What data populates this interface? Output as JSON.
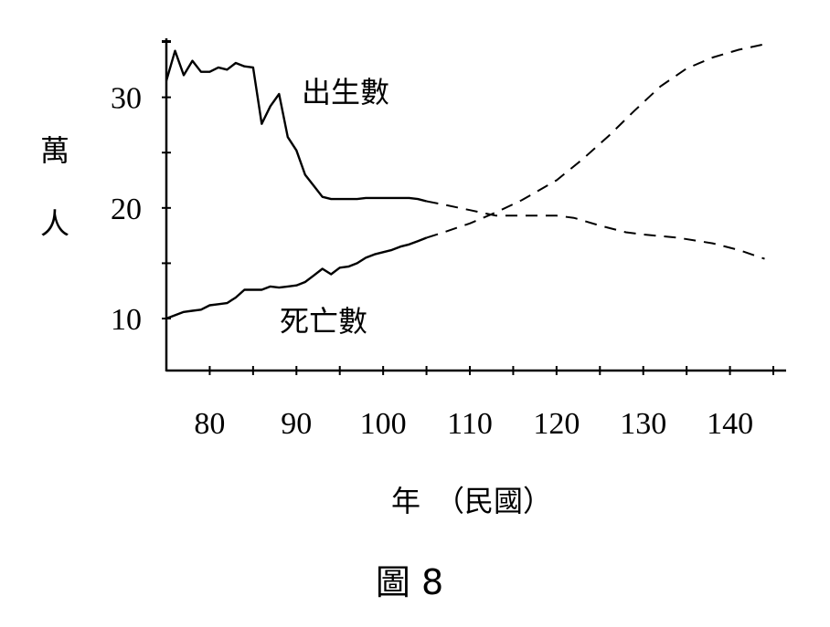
{
  "chart_data": {
    "type": "line",
    "title": "",
    "caption": "圖 8",
    "ylabel": "萬人",
    "xlabel": "年　（民國）",
    "xlim": [
      75,
      145
    ],
    "ylim": [
      5.3,
      35
    ],
    "x_ticks": [
      80,
      90,
      100,
      110,
      120,
      130,
      140
    ],
    "y_ticks": [
      10,
      20,
      30
    ],
    "grid": false,
    "series": [
      {
        "name": "出生數",
        "observed": [
          [
            75,
            31.5
          ],
          [
            76,
            34.2
          ],
          [
            77,
            32.0
          ],
          [
            78,
            33.3
          ],
          [
            79,
            32.3
          ],
          [
            80,
            32.3
          ],
          [
            81,
            32.7
          ],
          [
            82,
            32.5
          ],
          [
            83,
            33.1
          ],
          [
            84,
            32.8
          ],
          [
            85,
            32.7
          ],
          [
            86,
            27.6
          ],
          [
            87,
            29.2
          ],
          [
            88,
            30.3
          ],
          [
            89,
            26.4
          ],
          [
            90,
            25.2
          ],
          [
            91,
            23.0
          ],
          [
            92,
            22.0
          ],
          [
            93,
            21.0
          ],
          [
            94,
            20.8
          ],
          [
            95,
            20.8
          ],
          [
            96,
            20.8
          ],
          [
            97,
            20.8
          ],
          [
            98,
            20.9
          ],
          [
            99,
            20.9
          ],
          [
            100,
            20.9
          ],
          [
            101,
            20.9
          ],
          [
            102,
            20.9
          ],
          [
            103,
            20.9
          ],
          [
            104,
            20.8
          ],
          [
            105,
            20.6
          ]
        ],
        "projected": [
          [
            105,
            20.6
          ],
          [
            107,
            20.3
          ],
          [
            110,
            19.8
          ],
          [
            113,
            19.3
          ],
          [
            116,
            19.3
          ],
          [
            120,
            19.3
          ],
          [
            122,
            19.1
          ],
          [
            125,
            18.4
          ],
          [
            128,
            17.8
          ],
          [
            130,
            17.6
          ],
          [
            134,
            17.3
          ],
          [
            138,
            16.8
          ],
          [
            141,
            16.2
          ],
          [
            144,
            15.4
          ]
        ]
      },
      {
        "name": "死亡數",
        "observed": [
          [
            75,
            10.0
          ],
          [
            76,
            10.3
          ],
          [
            77,
            10.6
          ],
          [
            78,
            10.7
          ],
          [
            79,
            10.8
          ],
          [
            80,
            11.2
          ],
          [
            81,
            11.3
          ],
          [
            82,
            11.4
          ],
          [
            83,
            11.9
          ],
          [
            84,
            12.6
          ],
          [
            85,
            12.6
          ],
          [
            86,
            12.6
          ],
          [
            87,
            12.9
          ],
          [
            88,
            12.8
          ],
          [
            89,
            12.9
          ],
          [
            90,
            13.0
          ],
          [
            91,
            13.3
          ],
          [
            92,
            13.9
          ],
          [
            93,
            14.5
          ],
          [
            94,
            14.0
          ],
          [
            95,
            14.6
          ],
          [
            96,
            14.7
          ],
          [
            97,
            15.0
          ],
          [
            98,
            15.5
          ],
          [
            99,
            15.8
          ],
          [
            100,
            16.0
          ],
          [
            101,
            16.2
          ],
          [
            102,
            16.5
          ],
          [
            103,
            16.7
          ],
          [
            104,
            17.0
          ],
          [
            105,
            17.3
          ]
        ],
        "projected": [
          [
            105,
            17.3
          ],
          [
            107,
            17.8
          ],
          [
            110,
            18.6
          ],
          [
            113,
            19.6
          ],
          [
            116,
            20.7
          ],
          [
            120,
            22.5
          ],
          [
            123,
            24.4
          ],
          [
            126,
            26.5
          ],
          [
            129,
            28.8
          ],
          [
            132,
            31.0
          ],
          [
            135,
            32.6
          ],
          [
            138,
            33.6
          ],
          [
            141,
            34.3
          ],
          [
            144,
            34.8
          ]
        ]
      }
    ]
  }
}
